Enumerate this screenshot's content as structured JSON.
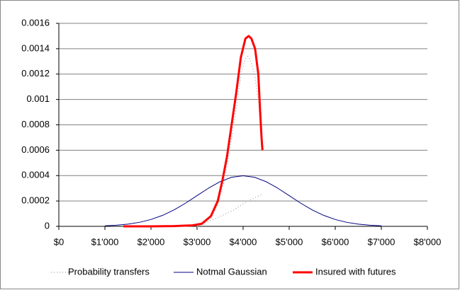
{
  "chart_data": {
    "type": "line",
    "xlim": [
      0,
      8000
    ],
    "xticks": [
      {
        "value": 0,
        "label": "$0"
      },
      {
        "value": 1000,
        "label": "$1'000"
      },
      {
        "value": 2000,
        "label": "$2'000"
      },
      {
        "value": 3000,
        "label": "$3'000"
      },
      {
        "value": 4000,
        "label": "$4'000"
      },
      {
        "value": 5000,
        "label": "$5'000"
      },
      {
        "value": 6000,
        "label": "$6'000"
      },
      {
        "value": 7000,
        "label": "$7'000"
      },
      {
        "value": 8000,
        "label": "$8'000"
      }
    ],
    "ylim": [
      0,
      0.0016
    ],
    "yticks": [
      0,
      0.0002,
      0.0004,
      0.0006,
      0.0008,
      0.001,
      0.0012,
      0.0014,
      0.0016
    ],
    "grid": true,
    "legend": "bottom",
    "series": [
      {
        "name": "Probability transfers",
        "color": "#b0b0b0",
        "style": "dotted",
        "x": [
          1500,
          2000,
          2500,
          2900,
          3100,
          3300,
          3450,
          3550,
          3650,
          3750,
          3850,
          3950,
          4050,
          4100,
          4150,
          4250,
          4330,
          4400,
          4420,
          3000,
          3400,
          3800,
          4100,
          4400
        ],
        "values": [
          0,
          0,
          2e-06,
          6e-06,
          1.5e-05,
          6e-05,
          0.00017,
          0.0003,
          0.00047,
          0.0007,
          0.00093,
          0.0012,
          0.00132,
          0.00134,
          0.00132,
          0.0012,
          0.001,
          0.0008,
          null,
          0,
          6e-05,
          0.00013,
          0.0002,
          0.00025
        ]
      },
      {
        "name": "Notmal Gaussian",
        "color": "#000080",
        "style": "solid",
        "x": [
          1000,
          1250,
          1500,
          1750,
          2000,
          2250,
          2500,
          2750,
          3000,
          3250,
          3500,
          3750,
          4000,
          4250,
          4500,
          4750,
          5000,
          5250,
          5500,
          5750,
          6000,
          6250,
          6500,
          6750,
          7000
        ],
        "values": [
          4.4e-06,
          9.1e-06,
          1.75e-05,
          3.17e-05,
          5.4e-05,
          8.63e-05,
          0.0001295,
          0.0001826,
          0.000242,
          0.0003011,
          0.000352,
          0.0003867,
          0.0003989,
          0.0003867,
          0.000352,
          0.0003011,
          0.000242,
          0.0001826,
          0.0001295,
          8.63e-05,
          5.4e-05,
          3.17e-05,
          1.75e-05,
          9.1e-06,
          4.4e-06
        ]
      },
      {
        "name": "Insured with futures",
        "color": "#ff0000",
        "style": "thick",
        "x": [
          1400,
          2000,
          2500,
          2900,
          3100,
          3300,
          3450,
          3550,
          3650,
          3750,
          3850,
          3950,
          4050,
          4120,
          4180,
          4260,
          4330,
          4370,
          4400,
          4420
        ],
        "values": [
          0,
          0,
          2e-06,
          8e-06,
          2e-05,
          8e-05,
          0.0002,
          0.00036,
          0.00055,
          0.0008,
          0.00105,
          0.00133,
          0.00148,
          0.0015,
          0.00148,
          0.0014,
          0.0012,
          0.0009,
          0.0007,
          0.0006
        ]
      }
    ]
  }
}
